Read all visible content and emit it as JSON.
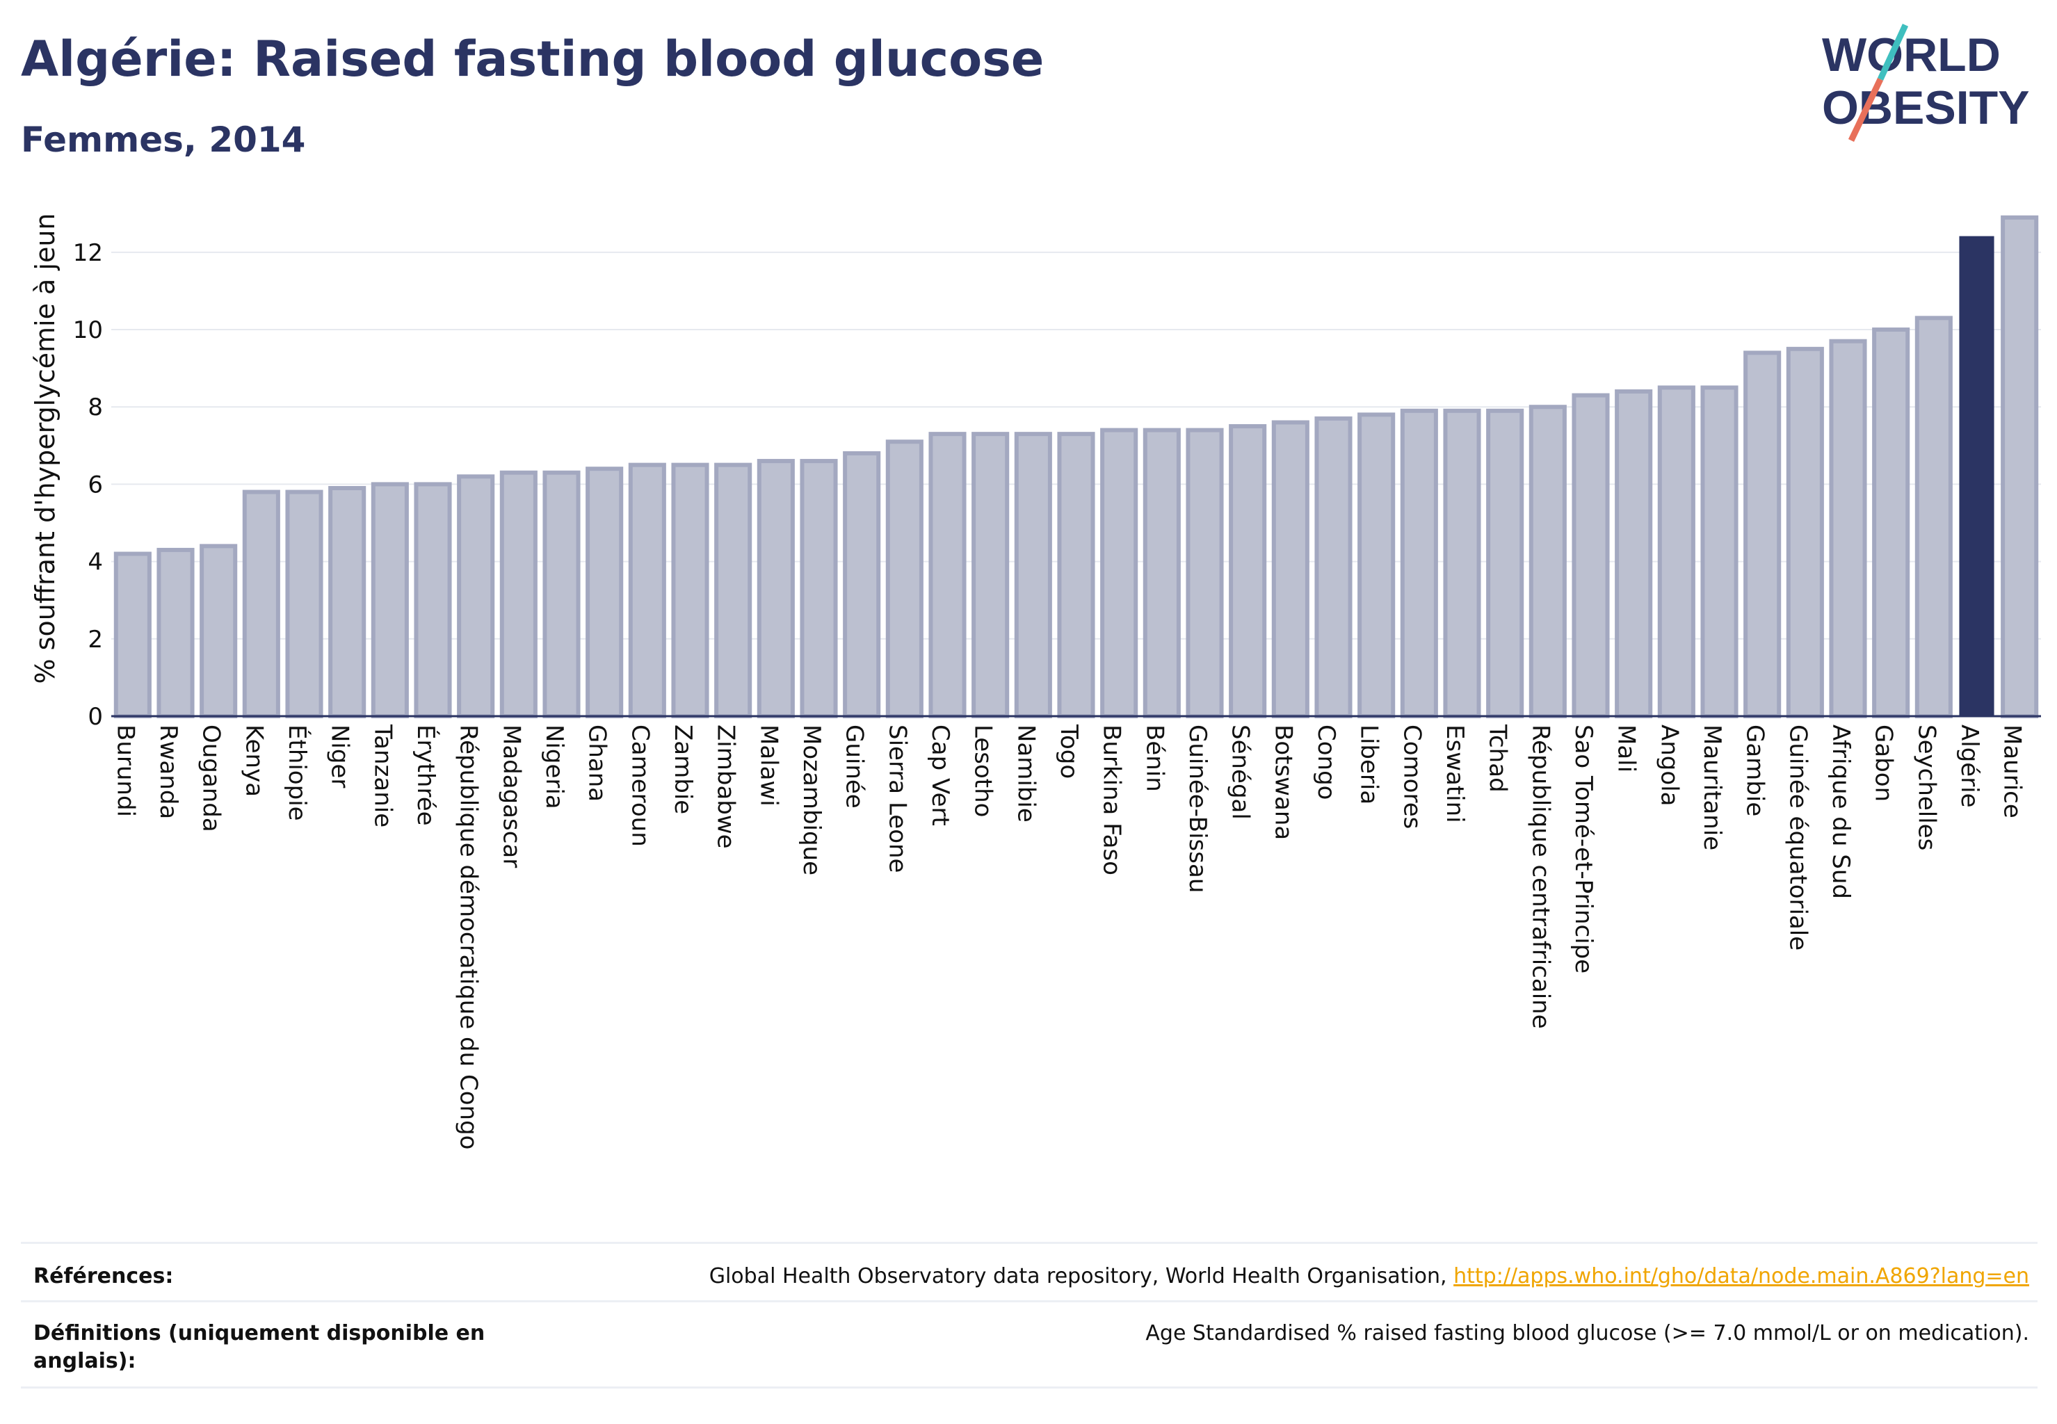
{
  "header": {
    "title": "Algérie: Raised fasting blood glucose",
    "subtitle": "Femmes, 2014"
  },
  "logo": {
    "line1": "WORLD",
    "line2": "OBESITY",
    "text_color": "#2b3463",
    "slash_color_top": "#3fbfbf",
    "slash_color_bottom": "#e8705a"
  },
  "colors": {
    "bar_fill": "#bcc0d0",
    "bar_stroke": "#a3a8c0",
    "highlight": "#2b3463",
    "grid": "#e6e9ef",
    "axis": "#2b3463"
  },
  "chart_data": {
    "type": "bar",
    "title": "",
    "xlabel": "",
    "ylabel": "% souffrant d'hyperglycémie à jeun",
    "ylim": [
      0,
      13.4
    ],
    "yticks": [
      0,
      2,
      4,
      6,
      8,
      10,
      12
    ],
    "grid": true,
    "highlight_category": "Algérie",
    "categories": [
      "Burundi",
      "Rwanda",
      "Ouganda",
      "Kenya",
      "Éthiopie",
      "Niger",
      "Tanzanie",
      "Érythrée",
      "République démocratique du Congo",
      "Madagascar",
      "Nigeria",
      "Ghana",
      "Cameroun",
      "Zambie",
      "Zimbabwe",
      "Malawi",
      "Mozambique",
      "Guinée",
      "Sierra Leone",
      "Cap Vert",
      "Lesotho",
      "Namibie",
      "Togo",
      "Burkina Faso",
      "Bénin",
      "Guinée-Bissau",
      "Sénégal",
      "Botswana",
      "Congo",
      "Liberia",
      "Comores",
      "Eswatini",
      "Tchad",
      "République centrafricaine",
      "Sao Tomé-et-Principe",
      "Mali",
      "Angola",
      "Mauritanie",
      "Gambie",
      "Guinée équatoriale",
      "Afrique du Sud",
      "Gabon",
      "Seychelles",
      "Algérie",
      "Maurice"
    ],
    "values": [
      4.2,
      4.3,
      4.4,
      5.8,
      5.8,
      5.9,
      6.0,
      6.0,
      6.2,
      6.3,
      6.3,
      6.4,
      6.5,
      6.5,
      6.5,
      6.6,
      6.6,
      6.8,
      7.1,
      7.3,
      7.3,
      7.3,
      7.3,
      7.4,
      7.4,
      7.4,
      7.5,
      7.6,
      7.7,
      7.8,
      7.9,
      7.9,
      7.9,
      8.0,
      8.3,
      8.4,
      8.5,
      8.5,
      9.4,
      9.5,
      9.7,
      10.0,
      10.3,
      12.4,
      12.9
    ]
  },
  "footer": {
    "references_label": "Références:",
    "references_text": "Global Health Observatory data repository, World Health Organisation,",
    "references_link": "http://apps.who.int/gho/data/node.main.A869?lang=en",
    "definitions_label_line1": "Définitions (uniquement disponible en",
    "definitions_label_line2": "anglais):",
    "definitions_text": "Age Standardised % raised fasting blood glucose (>= 7.0 mmol/L or on medication)."
  }
}
